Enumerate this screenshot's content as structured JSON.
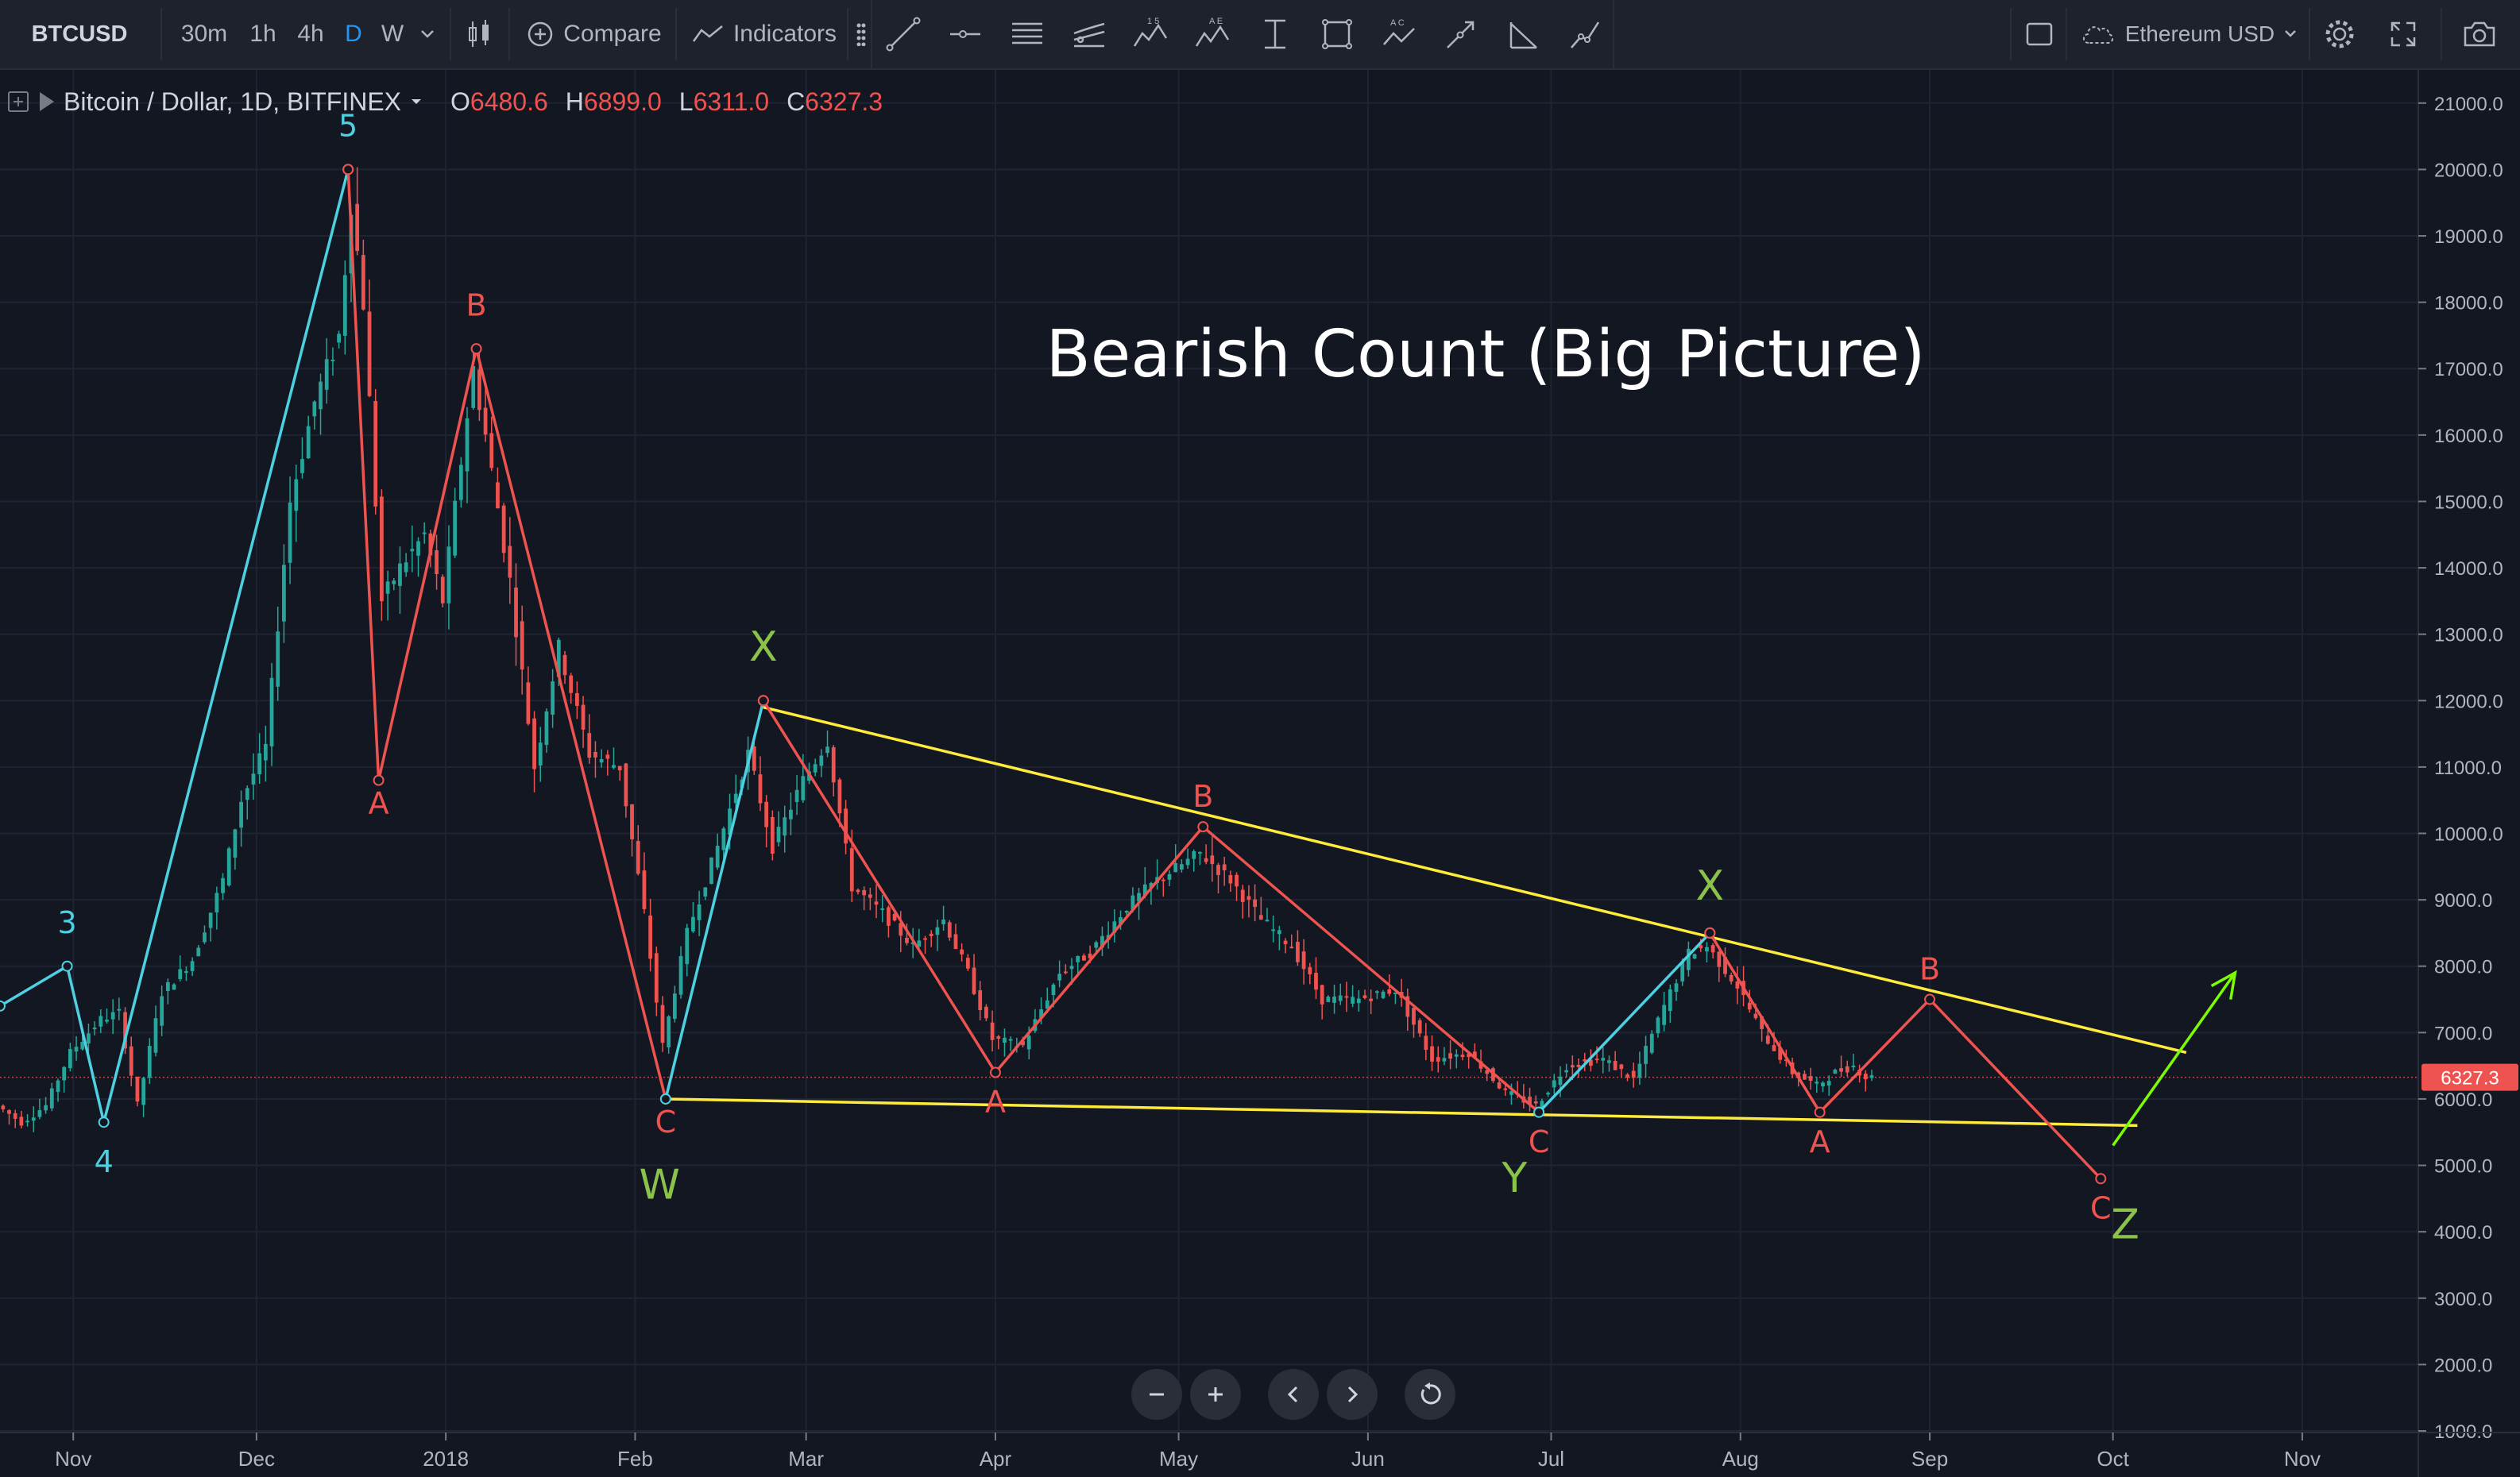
{
  "toolbar": {
    "symbol": "BTCUSD",
    "intervals": [
      "30m",
      "1h",
      "4h",
      "D",
      "W"
    ],
    "active_interval": "D",
    "compare_label": "Compare",
    "indicators_label": "Indicators",
    "compare_symbol": "Ethereum USD",
    "drawing_tools": [
      "trend-line-icon",
      "horizontal-ray-icon",
      "parallel-channel-icon",
      "fib-retracement-icon",
      "elliott-impulse-icon",
      "elliott-correction-icon",
      "price-range-icon",
      "rectangle-icon",
      "abc-pattern-icon",
      "arrow-tool-icon",
      "fan-tool-icon",
      "path-tool-icon"
    ]
  },
  "legend": {
    "title": "Bitcoin / Dollar, 1D, BITFINEX",
    "open_label": "O",
    "open_value": "6480.6",
    "high_label": "H",
    "high_value": "6899.0",
    "low_label": "L",
    "low_value": "6311.0",
    "close_label": "C",
    "close_value": "6327.3"
  },
  "chart_data": {
    "type": "candlestick",
    "title": "Bearish Count (Big Picture)",
    "symbol": "BTCUSD",
    "exchange": "BITFINEX",
    "timeframe": "1D",
    "x_range": [
      "2017-10-20",
      "2018-11-20"
    ],
    "y_range": [
      1000,
      21500
    ],
    "y_ticks": [
      "21000.0",
      "20000.0",
      "19000.0",
      "18000.0",
      "17000.0",
      "16000.0",
      "15000.0",
      "14000.0",
      "13000.0",
      "12000.0",
      "11000.0",
      "10000.0",
      "9000.0",
      "8000.0",
      "7000.0",
      "6000.0",
      "5000.0",
      "4000.0",
      "3000.0",
      "2000.0",
      "1000.0"
    ],
    "x_ticks": [
      {
        "label": "Nov",
        "date": "2017-11-01"
      },
      {
        "label": "Dec",
        "date": "2017-12-01"
      },
      {
        "label": "2018",
        "date": "2018-01-01"
      },
      {
        "label": "Feb",
        "date": "2018-02-01"
      },
      {
        "label": "Mar",
        "date": "2018-03-01"
      },
      {
        "label": "Apr",
        "date": "2018-04-01"
      },
      {
        "label": "May",
        "date": "2018-05-01"
      },
      {
        "label": "Jun",
        "date": "2018-06-01"
      },
      {
        "label": "Jul",
        "date": "2018-07-01"
      },
      {
        "label": "Aug",
        "date": "2018-08-01"
      },
      {
        "label": "Sep",
        "date": "2018-09-01"
      },
      {
        "label": "Oct",
        "date": "2018-10-01"
      },
      {
        "label": "Nov",
        "date": "2018-11-01"
      }
    ],
    "last_price": "6327.3",
    "price_path": [
      [
        "2017-10-20",
        5900
      ],
      [
        "2017-10-24",
        5650
      ],
      [
        "2017-10-28",
        5900
      ],
      [
        "2017-11-01",
        6700
      ],
      [
        "2017-11-06",
        7200
      ],
      [
        "2017-11-09",
        7300
      ],
      [
        "2017-11-12",
        5900
      ],
      [
        "2017-11-16",
        7600
      ],
      [
        "2017-11-21",
        8100
      ],
      [
        "2017-11-26",
        9300
      ],
      [
        "2017-11-29",
        10500
      ],
      [
        "2017-12-03",
        11300
      ],
      [
        "2017-12-07",
        15000
      ],
      [
        "2017-12-11",
        16500
      ],
      [
        "2017-12-15",
        17500
      ],
      [
        "2017-12-17",
        19500
      ],
      [
        "2017-12-19",
        18000
      ],
      [
        "2017-12-22",
        13500
      ],
      [
        "2017-12-25",
        14000
      ],
      [
        "2017-12-29",
        14500
      ],
      [
        "2018-01-01",
        13500
      ],
      [
        "2018-01-06",
        17000
      ],
      [
        "2018-01-08",
        16000
      ],
      [
        "2018-01-12",
        13800
      ],
      [
        "2018-01-16",
        11000
      ],
      [
        "2018-01-20",
        12800
      ],
      [
        "2018-01-25",
        11200
      ],
      [
        "2018-01-30",
        11000
      ],
      [
        "2018-02-03",
        8800
      ],
      [
        "2018-02-06",
        6800
      ],
      [
        "2018-02-10",
        8500
      ],
      [
        "2018-02-15",
        9800
      ],
      [
        "2018-02-20",
        11200
      ],
      [
        "2018-02-24",
        9800
      ],
      [
        "2018-03-01",
        10800
      ],
      [
        "2018-03-05",
        11400
      ],
      [
        "2018-03-09",
        9200
      ],
      [
        "2018-03-14",
        8800
      ],
      [
        "2018-03-19",
        8300
      ],
      [
        "2018-03-24",
        8700
      ],
      [
        "2018-03-28",
        7900
      ],
      [
        "2018-04-01",
        6900
      ],
      [
        "2018-04-06",
        6800
      ],
      [
        "2018-04-12",
        7900
      ],
      [
        "2018-04-17",
        8200
      ],
      [
        "2018-04-23",
        8900
      ],
      [
        "2018-04-28",
        9300
      ],
      [
        "2018-05-05",
        9700
      ],
      [
        "2018-05-10",
        9300
      ],
      [
        "2018-05-15",
        8700
      ],
      [
        "2018-05-20",
        8300
      ],
      [
        "2018-05-25",
        7500
      ],
      [
        "2018-05-31",
        7500
      ],
      [
        "2018-06-06",
        7650
      ],
      [
        "2018-06-12",
        6600
      ],
      [
        "2018-06-18",
        6700
      ],
      [
        "2018-06-24",
        6100
      ],
      [
        "2018-06-29",
        5900
      ],
      [
        "2018-07-04",
        6500
      ],
      [
        "2018-07-10",
        6600
      ],
      [
        "2018-07-15",
        6300
      ],
      [
        "2018-07-20",
        7400
      ],
      [
        "2018-07-24",
        8200
      ],
      [
        "2018-07-27",
        8300
      ],
      [
        "2018-08-01",
        7700
      ],
      [
        "2018-08-05",
        7000
      ],
      [
        "2018-08-10",
        6400
      ],
      [
        "2018-08-14",
        6200
      ],
      [
        "2018-08-17",
        6400
      ],
      [
        "2018-08-20",
        6500
      ],
      [
        "2018-08-22",
        6327
      ]
    ],
    "trendlines": [
      {
        "from": [
          "2018-02-22",
          11900
        ],
        "to": [
          "2018-10-13",
          6700
        ],
        "color": "#ffeb3b"
      },
      {
        "from": [
          "2018-02-06",
          6000
        ],
        "to": [
          "2018-10-05",
          5600
        ],
        "color": "#ffeb3b"
      }
    ],
    "wave_paths": [
      {
        "color": "#4dd0e1",
        "points": [
          [
            "2017-10-20",
            7400
          ],
          [
            "2017-10-31",
            8000
          ],
          [
            "2017-11-06",
            5650
          ],
          [
            "2017-12-16",
            20000
          ]
        ]
      },
      {
        "color": "#ef5350",
        "points": [
          [
            "2017-12-16",
            20000
          ],
          [
            "2017-12-21",
            10800
          ],
          [
            "2018-01-06",
            17300
          ],
          [
            "2018-02-06",
            6000
          ]
        ]
      },
      {
        "color": "#4dd0e1",
        "points": [
          [
            "2018-02-06",
            6000
          ],
          [
            "2018-02-22",
            12000
          ]
        ]
      },
      {
        "color": "#ef5350",
        "points": [
          [
            "2018-02-22",
            12000
          ],
          [
            "2018-04-01",
            6400
          ],
          [
            "2018-05-05",
            10100
          ],
          [
            "2018-06-29",
            5800
          ]
        ]
      },
      {
        "color": "#4dd0e1",
        "points": [
          [
            "2018-06-29",
            5800
          ],
          [
            "2018-07-27",
            8500
          ]
        ]
      },
      {
        "color": "#ef5350",
        "points": [
          [
            "2018-07-27",
            8500
          ],
          [
            "2018-08-14",
            5800
          ],
          [
            "2018-09-01",
            7500
          ],
          [
            "2018-09-29",
            4800
          ]
        ]
      },
      {
        "color": "#7cfc00",
        "points": [
          [
            "2018-10-01",
            5300
          ],
          [
            "2018-10-21",
            7900
          ]
        ],
        "arrow": true
      }
    ],
    "wave_labels": [
      {
        "text": "3",
        "date": "2017-10-31",
        "price": 8500,
        "color": "#4dd0e1"
      },
      {
        "text": "4",
        "date": "2017-11-06",
        "price": 4900,
        "color": "#4dd0e1"
      },
      {
        "text": "5",
        "date": "2017-12-16",
        "price": 20500,
        "color": "#4dd0e1"
      },
      {
        "text": "A",
        "date": "2017-12-21",
        "price": 10300,
        "color": "#ef5350"
      },
      {
        "text": "B",
        "date": "2018-01-06",
        "price": 17800,
        "color": "#ef5350"
      },
      {
        "text": "C",
        "date": "2018-02-06",
        "price": 5500,
        "color": "#ef5350"
      },
      {
        "text": "W",
        "date": "2018-02-05",
        "price": 4500,
        "color": "#8bc34a"
      },
      {
        "text": "X",
        "date": "2018-02-22",
        "price": 12600,
        "color": "#8bc34a"
      },
      {
        "text": "A",
        "date": "2018-04-01",
        "price": 5800,
        "color": "#ef5350"
      },
      {
        "text": "B",
        "date": "2018-05-05",
        "price": 10400,
        "color": "#ef5350"
      },
      {
        "text": "C",
        "date": "2018-06-29",
        "price": 5200,
        "color": "#ef5350"
      },
      {
        "text": "Y",
        "date": "2018-06-25",
        "price": 4600,
        "color": "#8bc34a"
      },
      {
        "text": "X",
        "date": "2018-07-27",
        "price": 9000,
        "color": "#8bc34a"
      },
      {
        "text": "A",
        "date": "2018-08-14",
        "price": 5200,
        "color": "#ef5350"
      },
      {
        "text": "B",
        "date": "2018-09-01",
        "price": 7800,
        "color": "#ef5350"
      },
      {
        "text": "C",
        "date": "2018-09-29",
        "price": 4200,
        "color": "#ef5350"
      },
      {
        "text": "Z",
        "date": "2018-10-03",
        "price": 3900,
        "color": "#8bc34a"
      }
    ]
  },
  "colors": {
    "background": "#131722",
    "toolbar": "#1e222d",
    "up_candle": "#26a69a",
    "down_candle": "#ef5350",
    "active_interval": "#2196f3"
  }
}
